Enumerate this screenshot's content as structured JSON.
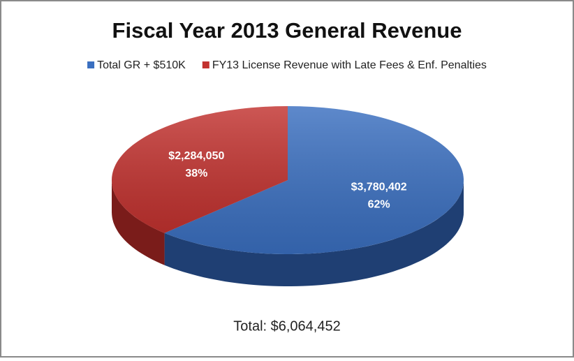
{
  "chart_data": {
    "type": "pie3d",
    "title": "Fiscal Year 2013 General Revenue",
    "categories": [
      "Total GR + $510K",
      "FY13 License Revenue with Late Fees & Enf. Penalties"
    ],
    "values": [
      3780402,
      2284050
    ],
    "value_labels": [
      "$3,780,402",
      "$2,284,050"
    ],
    "percents": [
      62,
      38
    ],
    "percent_labels": [
      "62%",
      "38%"
    ],
    "colors": [
      "#3a6fc0",
      "#c2322f"
    ],
    "side_colors": [
      "#1f3f73",
      "#7a1c1a"
    ],
    "legend": "top",
    "annotation": "Total: $6,064,452"
  }
}
